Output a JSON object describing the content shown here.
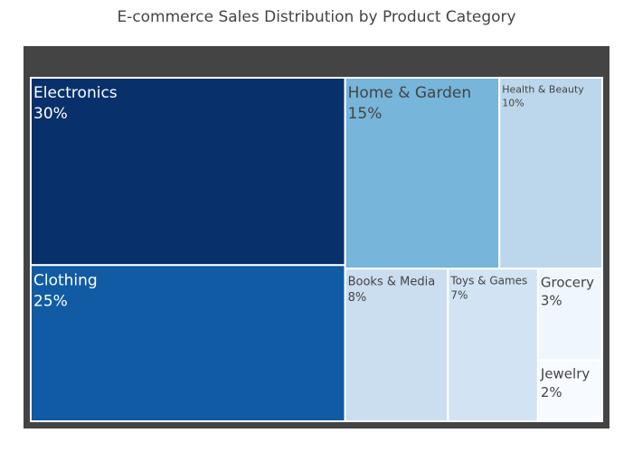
{
  "chart_data": {
    "type": "treemap",
    "title": "E-commerce Sales Distribution by Product Category",
    "tiles": [
      {
        "label": "Electronics",
        "value": 30,
        "value_label": "30%",
        "fill": "#08306b",
        "text_color": "#ffffff"
      },
      {
        "label": "Clothing",
        "value": 25,
        "value_label": "25%",
        "fill": "#105ba4",
        "text_color": "#ffffff"
      },
      {
        "label": "Home & Garden",
        "value": 15,
        "value_label": "15%",
        "fill": "#77b5da",
        "text_color": "#444444"
      },
      {
        "label": "Health & Beauty",
        "value": 10,
        "value_label": "10%",
        "fill": "#bcd7eb",
        "text_color": "#444444"
      },
      {
        "label": "Books & Media",
        "value": 8,
        "value_label": "8%",
        "fill": "#cadef0",
        "text_color": "#444444"
      },
      {
        "label": "Toys & Games",
        "value": 7,
        "value_label": "7%",
        "fill": "#d2e3f3",
        "text_color": "#444444"
      },
      {
        "label": "Grocery",
        "value": 3,
        "value_label": "3%",
        "fill": "#eff6fd",
        "text_color": "#444444"
      },
      {
        "label": "Jewelry",
        "value": 2,
        "value_label": "2%",
        "fill": "#f7fbff",
        "text_color": "#444444"
      }
    ]
  }
}
